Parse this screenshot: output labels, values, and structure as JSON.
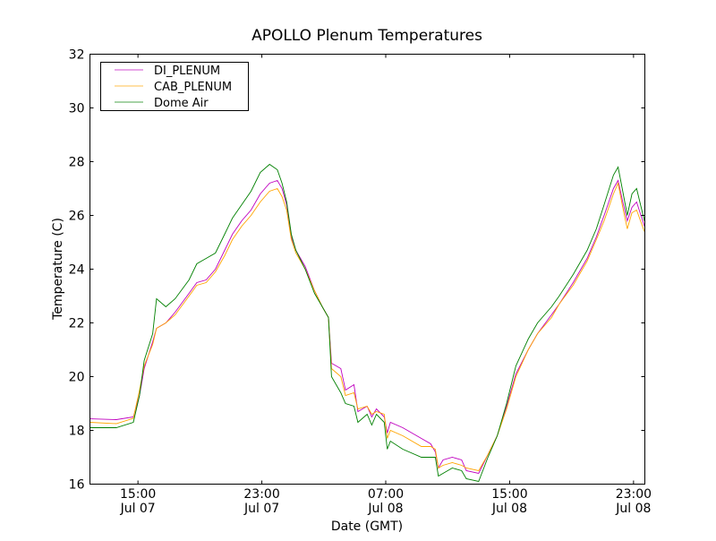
{
  "chart_data": {
    "type": "line",
    "title": "APOLLO Plenum Temperatures",
    "xlabel": "Date (GMT)",
    "ylabel": "Temperature (C)",
    "x_units": "hours since Jul 07 00:00 GMT",
    "xlim": [
      11.9,
      47.73
    ],
    "ylim": [
      16,
      32
    ],
    "yticks": [
      16,
      18,
      20,
      22,
      24,
      26,
      28,
      30,
      32
    ],
    "xticks": [
      {
        "value": 15,
        "time": "15:00",
        "date": "Jul 07"
      },
      {
        "value": 23,
        "time": "23:00",
        "date": "Jul 07"
      },
      {
        "value": 31,
        "time": "07:00",
        "date": "Jul 08"
      },
      {
        "value": 39,
        "time": "15:00",
        "date": "Jul 08"
      },
      {
        "value": 47,
        "time": "23:00",
        "date": "Jul 08"
      }
    ],
    "legend_position": "top-left",
    "grid": false,
    "x": [
      11.9,
      13.6,
      14.7,
      15.1,
      15.4,
      15.95,
      16.2,
      16.8,
      17.4,
      18.3,
      18.8,
      19.4,
      20.0,
      20.6,
      21.1,
      21.7,
      22.3,
      22.9,
      23.5,
      24.0,
      24.3,
      24.6,
      24.9,
      25.2,
      25.8,
      26.4,
      26.9,
      27.3,
      27.5,
      28.1,
      28.4,
      28.95,
      29.2,
      29.8,
      30.1,
      30.4,
      30.9,
      31.1,
      31.3,
      32.1,
      33.3,
      33.9,
      34.2,
      34.4,
      34.7,
      35.3,
      35.9,
      36.2,
      37.0,
      37.6,
      38.2,
      38.8,
      39.4,
      40.2,
      40.8,
      41.7,
      42.2,
      43.1,
      44.0,
      44.6,
      45.1,
      45.7,
      46.0,
      46.3,
      46.6,
      46.9,
      47.2,
      47.7
    ],
    "series": [
      {
        "name": "DI_PLENUM",
        "color": "#bf00bf",
        "values": [
          18.43,
          18.4,
          18.5,
          19.3,
          20.3,
          21.3,
          21.8,
          22.0,
          22.4,
          23.1,
          23.5,
          23.6,
          24.0,
          24.7,
          25.3,
          25.8,
          26.2,
          26.8,
          27.2,
          27.3,
          27.0,
          26.4,
          25.2,
          24.7,
          24.1,
          23.2,
          22.6,
          22.2,
          20.5,
          20.3,
          19.5,
          19.7,
          18.7,
          18.9,
          18.5,
          18.8,
          18.5,
          17.9,
          18.3,
          18.1,
          17.7,
          17.5,
          17.2,
          16.6,
          16.9,
          17.0,
          16.9,
          16.5,
          16.4,
          17.1,
          17.8,
          18.9,
          20.1,
          21.0,
          21.6,
          22.3,
          22.7,
          23.5,
          24.4,
          25.2,
          26.0,
          27.0,
          27.3,
          26.5,
          25.8,
          26.3,
          26.5,
          25.6
        ]
      },
      {
        "name": "CAB_PLENUM",
        "color": "#ffa500",
        "values": [
          18.3,
          18.25,
          18.45,
          19.5,
          20.4,
          21.2,
          21.8,
          22.0,
          22.3,
          23.0,
          23.4,
          23.5,
          23.9,
          24.5,
          25.1,
          25.6,
          26.0,
          26.5,
          26.9,
          27.0,
          26.7,
          26.2,
          25.1,
          24.6,
          24.0,
          23.2,
          22.6,
          22.2,
          20.3,
          20.0,
          19.3,
          19.4,
          18.8,
          18.9,
          18.6,
          18.7,
          18.6,
          17.7,
          18.0,
          17.8,
          17.4,
          17.4,
          17.3,
          16.6,
          16.7,
          16.8,
          16.7,
          16.6,
          16.5,
          17.1,
          17.8,
          18.8,
          20.0,
          21.0,
          21.6,
          22.2,
          22.7,
          23.4,
          24.3,
          25.1,
          25.8,
          26.8,
          27.2,
          26.3,
          25.5,
          26.1,
          26.2,
          25.4
        ]
      },
      {
        "name": "Dome Air",
        "color": "#008000",
        "values": [
          18.1,
          18.1,
          18.3,
          19.3,
          20.6,
          21.6,
          22.9,
          22.6,
          22.9,
          23.6,
          24.2,
          24.4,
          24.6,
          25.3,
          25.9,
          26.4,
          26.9,
          27.6,
          27.9,
          27.7,
          27.2,
          26.5,
          25.3,
          24.7,
          24.0,
          23.1,
          22.6,
          22.2,
          20.0,
          19.4,
          19.0,
          18.9,
          18.3,
          18.6,
          18.2,
          18.6,
          18.3,
          17.3,
          17.6,
          17.3,
          17.0,
          17.0,
          17.0,
          16.3,
          16.4,
          16.6,
          16.5,
          16.2,
          16.1,
          17.0,
          17.8,
          19.0,
          20.4,
          21.4,
          22.0,
          22.6,
          23.0,
          23.8,
          24.7,
          25.5,
          26.4,
          27.5,
          27.8,
          26.9,
          26.0,
          26.8,
          27.0,
          25.8
        ]
      }
    ]
  }
}
